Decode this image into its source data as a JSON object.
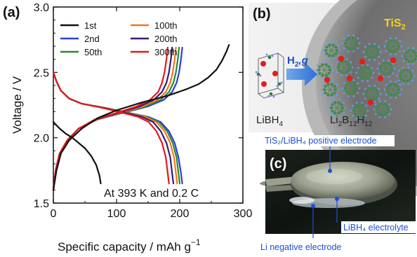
{
  "panels": {
    "a": "(a)",
    "b": "(b)",
    "c": "(c)"
  },
  "chart_data": {
    "type": "line",
    "xlabel": "Specific capacity / mAh g",
    "xlabel_sup": "−1",
    "ylabel": "Voltage / V",
    "xlim": [
      0,
      300
    ],
    "ylim": [
      1.5,
      3.0
    ],
    "xticks": [
      "0",
      "100",
      "200",
      "300"
    ],
    "yticks": [
      "1.5",
      "2.0",
      "2.5",
      "3.0"
    ],
    "annotation": "At 393 K and 0.2 C",
    "legend_position": "top-left",
    "series": [
      {
        "name": "1st",
        "color": "#111111",
        "discharge": [
          [
            0,
            2.12
          ],
          [
            10,
            2.07
          ],
          [
            20,
            2.03
          ],
          [
            30,
            2.0
          ],
          [
            40,
            1.96
          ],
          [
            50,
            1.92
          ],
          [
            60,
            1.86
          ],
          [
            68,
            1.79
          ],
          [
            73,
            1.71
          ],
          [
            75,
            1.65
          ]
        ],
        "charge": [
          [
            0,
            1.6
          ],
          [
            5,
            1.75
          ],
          [
            12,
            1.88
          ],
          [
            25,
            1.98
          ],
          [
            45,
            2.07
          ],
          [
            70,
            2.15
          ],
          [
            100,
            2.21
          ],
          [
            140,
            2.27
          ],
          [
            180,
            2.32
          ],
          [
            210,
            2.37
          ],
          [
            230,
            2.41
          ],
          [
            245,
            2.46
          ],
          [
            258,
            2.52
          ],
          [
            267,
            2.59
          ],
          [
            274,
            2.66
          ],
          [
            278,
            2.71
          ]
        ]
      },
      {
        "name": "2nd",
        "color": "#2a3fe0",
        "discharge": [
          [
            0,
            2.5
          ],
          [
            5,
            2.43
          ],
          [
            12,
            2.36
          ],
          [
            25,
            2.3
          ],
          [
            45,
            2.26
          ],
          [
            80,
            2.23
          ],
          [
            120,
            2.19
          ],
          [
            150,
            2.16
          ],
          [
            170,
            2.12
          ],
          [
            183,
            2.05
          ],
          [
            192,
            1.96
          ],
          [
            198,
            1.85
          ],
          [
            202,
            1.73
          ],
          [
            204,
            1.65
          ]
        ],
        "charge": [
          [
            0,
            1.6
          ],
          [
            4,
            1.76
          ],
          [
            10,
            1.88
          ],
          [
            22,
            1.98
          ],
          [
            40,
            2.07
          ],
          [
            70,
            2.14
          ],
          [
            110,
            2.19
          ],
          [
            150,
            2.24
          ],
          [
            175,
            2.29
          ],
          [
            188,
            2.35
          ],
          [
            195,
            2.42
          ],
          [
            199,
            2.5
          ],
          [
            202,
            2.6
          ],
          [
            204,
            2.69
          ]
        ]
      },
      {
        "name": "50th",
        "color": "#2a8a2a",
        "discharge": [
          [
            0,
            2.5
          ],
          [
            5,
            2.43
          ],
          [
            12,
            2.36
          ],
          [
            25,
            2.3
          ],
          [
            45,
            2.26
          ],
          [
            80,
            2.23
          ],
          [
            120,
            2.19
          ],
          [
            148,
            2.16
          ],
          [
            167,
            2.12
          ],
          [
            180,
            2.05
          ],
          [
            189,
            1.96
          ],
          [
            195,
            1.85
          ],
          [
            198,
            1.73
          ],
          [
            200,
            1.65
          ]
        ],
        "charge": [
          [
            0,
            1.6
          ],
          [
            4,
            1.76
          ],
          [
            10,
            1.88
          ],
          [
            22,
            1.98
          ],
          [
            40,
            2.07
          ],
          [
            70,
            2.14
          ],
          [
            108,
            2.19
          ],
          [
            146,
            2.24
          ],
          [
            170,
            2.29
          ],
          [
            183,
            2.35
          ],
          [
            190,
            2.42
          ],
          [
            194,
            2.5
          ],
          [
            197,
            2.6
          ],
          [
            199,
            2.69
          ]
        ]
      },
      {
        "name": "100th",
        "color": "#f07820",
        "discharge": [
          [
            0,
            2.5
          ],
          [
            5,
            2.43
          ],
          [
            12,
            2.36
          ],
          [
            25,
            2.3
          ],
          [
            45,
            2.26
          ],
          [
            80,
            2.23
          ],
          [
            118,
            2.19
          ],
          [
            145,
            2.16
          ],
          [
            163,
            2.12
          ],
          [
            176,
            2.05
          ],
          [
            185,
            1.96
          ],
          [
            191,
            1.85
          ],
          [
            194,
            1.73
          ],
          [
            196,
            1.65
          ]
        ],
        "charge": [
          [
            0,
            1.6
          ],
          [
            4,
            1.76
          ],
          [
            10,
            1.88
          ],
          [
            22,
            1.98
          ],
          [
            40,
            2.07
          ],
          [
            70,
            2.14
          ],
          [
            106,
            2.19
          ],
          [
            142,
            2.24
          ],
          [
            165,
            2.29
          ],
          [
            178,
            2.35
          ],
          [
            185,
            2.42
          ],
          [
            189,
            2.5
          ],
          [
            192,
            2.6
          ],
          [
            194,
            2.69
          ]
        ]
      },
      {
        "name": "200th",
        "color": "#3a1a7a",
        "discharge": [
          [
            0,
            2.5
          ],
          [
            5,
            2.43
          ],
          [
            12,
            2.36
          ],
          [
            25,
            2.3
          ],
          [
            45,
            2.26
          ],
          [
            78,
            2.23
          ],
          [
            115,
            2.19
          ],
          [
            140,
            2.16
          ],
          [
            158,
            2.12
          ],
          [
            170,
            2.05
          ],
          [
            179,
            1.96
          ],
          [
            185,
            1.85
          ],
          [
            188,
            1.73
          ],
          [
            190,
            1.65
          ]
        ],
        "charge": [
          [
            0,
            1.6
          ],
          [
            4,
            1.76
          ],
          [
            10,
            1.88
          ],
          [
            22,
            1.98
          ],
          [
            40,
            2.07
          ],
          [
            68,
            2.14
          ],
          [
            103,
            2.19
          ],
          [
            137,
            2.24
          ],
          [
            159,
            2.29
          ],
          [
            172,
            2.35
          ],
          [
            179,
            2.42
          ],
          [
            183,
            2.5
          ],
          [
            186,
            2.6
          ],
          [
            188,
            2.69
          ]
        ]
      },
      {
        "name": "300th",
        "color": "#e01a1a",
        "discharge": [
          [
            0,
            2.5
          ],
          [
            5,
            2.43
          ],
          [
            12,
            2.36
          ],
          [
            25,
            2.3
          ],
          [
            45,
            2.26
          ],
          [
            76,
            2.23
          ],
          [
            110,
            2.19
          ],
          [
            134,
            2.16
          ],
          [
            151,
            2.12
          ],
          [
            163,
            2.05
          ],
          [
            172,
            1.96
          ],
          [
            178,
            1.85
          ],
          [
            181,
            1.73
          ],
          [
            183,
            1.65
          ]
        ],
        "charge": [
          [
            0,
            1.6
          ],
          [
            4,
            1.76
          ],
          [
            10,
            1.88
          ],
          [
            22,
            1.98
          ],
          [
            40,
            2.07
          ],
          [
            66,
            2.14
          ],
          [
            100,
            2.19
          ],
          [
            132,
            2.24
          ],
          [
            153,
            2.29
          ],
          [
            166,
            2.35
          ],
          [
            172,
            2.42
          ],
          [
            176,
            2.5
          ],
          [
            179,
            2.6
          ],
          [
            181,
            2.69
          ]
        ]
      }
    ]
  },
  "panel_b": {
    "material": "TiS",
    "material_sub": "2",
    "reactant": "LiBH",
    "reactant_sub": "4",
    "arrow_label": "H",
    "arrow_label_sub": "2",
    "arrow_label_suffix": ",g",
    "product_parts": [
      "Li",
      "2",
      "B",
      "12",
      "H",
      "12"
    ]
  },
  "panel_c": {
    "callout_top": "TiS₂/LiBH₄ positive electrode",
    "callout_right": "LiBH₄ electrolyte",
    "callout_bottom": "Li negative electrode"
  }
}
